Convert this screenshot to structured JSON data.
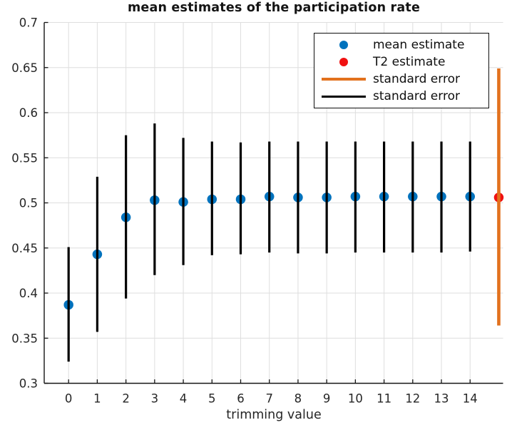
{
  "figure": {
    "title": "mean estimates of the participation rate",
    "xlabel": "trimming value"
  },
  "colors": {
    "mean_marker": "#0072BD",
    "t2_marker": "#F01111",
    "orange_error": "#E2711D",
    "black_error": "#000000",
    "grid": "#DEDEDE",
    "axis": "#151515",
    "text": "#262626"
  },
  "legend": {
    "items": [
      {
        "label": "mean estimate",
        "marker": "dot",
        "color": "#0072BD"
      },
      {
        "label": "T2 estimate",
        "marker": "dot",
        "color": "#F01111"
      },
      {
        "label": "standard error",
        "marker": "line",
        "color": "#E2711D"
      },
      {
        "label": "standard error",
        "marker": "line",
        "color": "#000000"
      }
    ]
  },
  "chart_data": {
    "type": "scatter",
    "title": "mean estimates of the participation rate",
    "xlabel": "trimming value",
    "ylabel": "",
    "grid": true,
    "legend_position": "top-right",
    "xlim": [
      -0.85,
      15.15
    ],
    "ylim": [
      0.3,
      0.7
    ],
    "x_ticks": [
      0,
      1,
      2,
      3,
      4,
      5,
      6,
      7,
      8,
      9,
      10,
      11,
      12,
      13,
      14
    ],
    "x_tick_labels": [
      "0",
      "1",
      "2",
      "3",
      "4",
      "5",
      "6",
      "7",
      "8",
      "9",
      "10",
      "11",
      "12",
      "13",
      "14"
    ],
    "y_ticks": [
      0.3,
      0.35,
      0.4,
      0.45,
      0.5,
      0.55,
      0.6,
      0.65,
      0.7
    ],
    "y_tick_labels": [
      "0.3",
      "0.35",
      "0.4",
      "0.45",
      "0.5",
      "0.55",
      "0.6",
      "0.65",
      "0.7"
    ],
    "series": [
      {
        "name": "mean estimate",
        "type": "scatter",
        "color": "#0072BD",
        "x": [
          0,
          1,
          2,
          3,
          4,
          5,
          6,
          7,
          8,
          9,
          10,
          11,
          12,
          13,
          14
        ],
        "y": [
          0.387,
          0.443,
          0.484,
          0.503,
          0.501,
          0.504,
          0.504,
          0.507,
          0.506,
          0.506,
          0.507,
          0.507,
          0.507,
          0.507,
          0.507
        ]
      },
      {
        "name": "T2 estimate",
        "type": "scatter",
        "color": "#F01111",
        "x": [
          15
        ],
        "y": [
          0.506
        ]
      },
      {
        "name": "standard error",
        "type": "errorbar",
        "color": "#000000",
        "line_width": 3.2,
        "x": [
          0,
          1,
          2,
          3,
          4,
          5,
          6,
          7,
          8,
          9,
          10,
          11,
          12,
          13,
          14
        ],
        "y_low": [
          0.324,
          0.357,
          0.394,
          0.42,
          0.431,
          0.442,
          0.443,
          0.445,
          0.444,
          0.444,
          0.445,
          0.445,
          0.445,
          0.445,
          0.446
        ],
        "y_high": [
          0.451,
          0.529,
          0.575,
          0.588,
          0.572,
          0.568,
          0.567,
          0.568,
          0.568,
          0.568,
          0.568,
          0.568,
          0.568,
          0.568,
          0.568
        ]
      },
      {
        "name": "standard error",
        "type": "errorbar",
        "color": "#E2711D",
        "line_width": 4.6,
        "x": [
          15
        ],
        "y_low": [
          0.364
        ],
        "y_high": [
          0.649
        ]
      }
    ]
  }
}
